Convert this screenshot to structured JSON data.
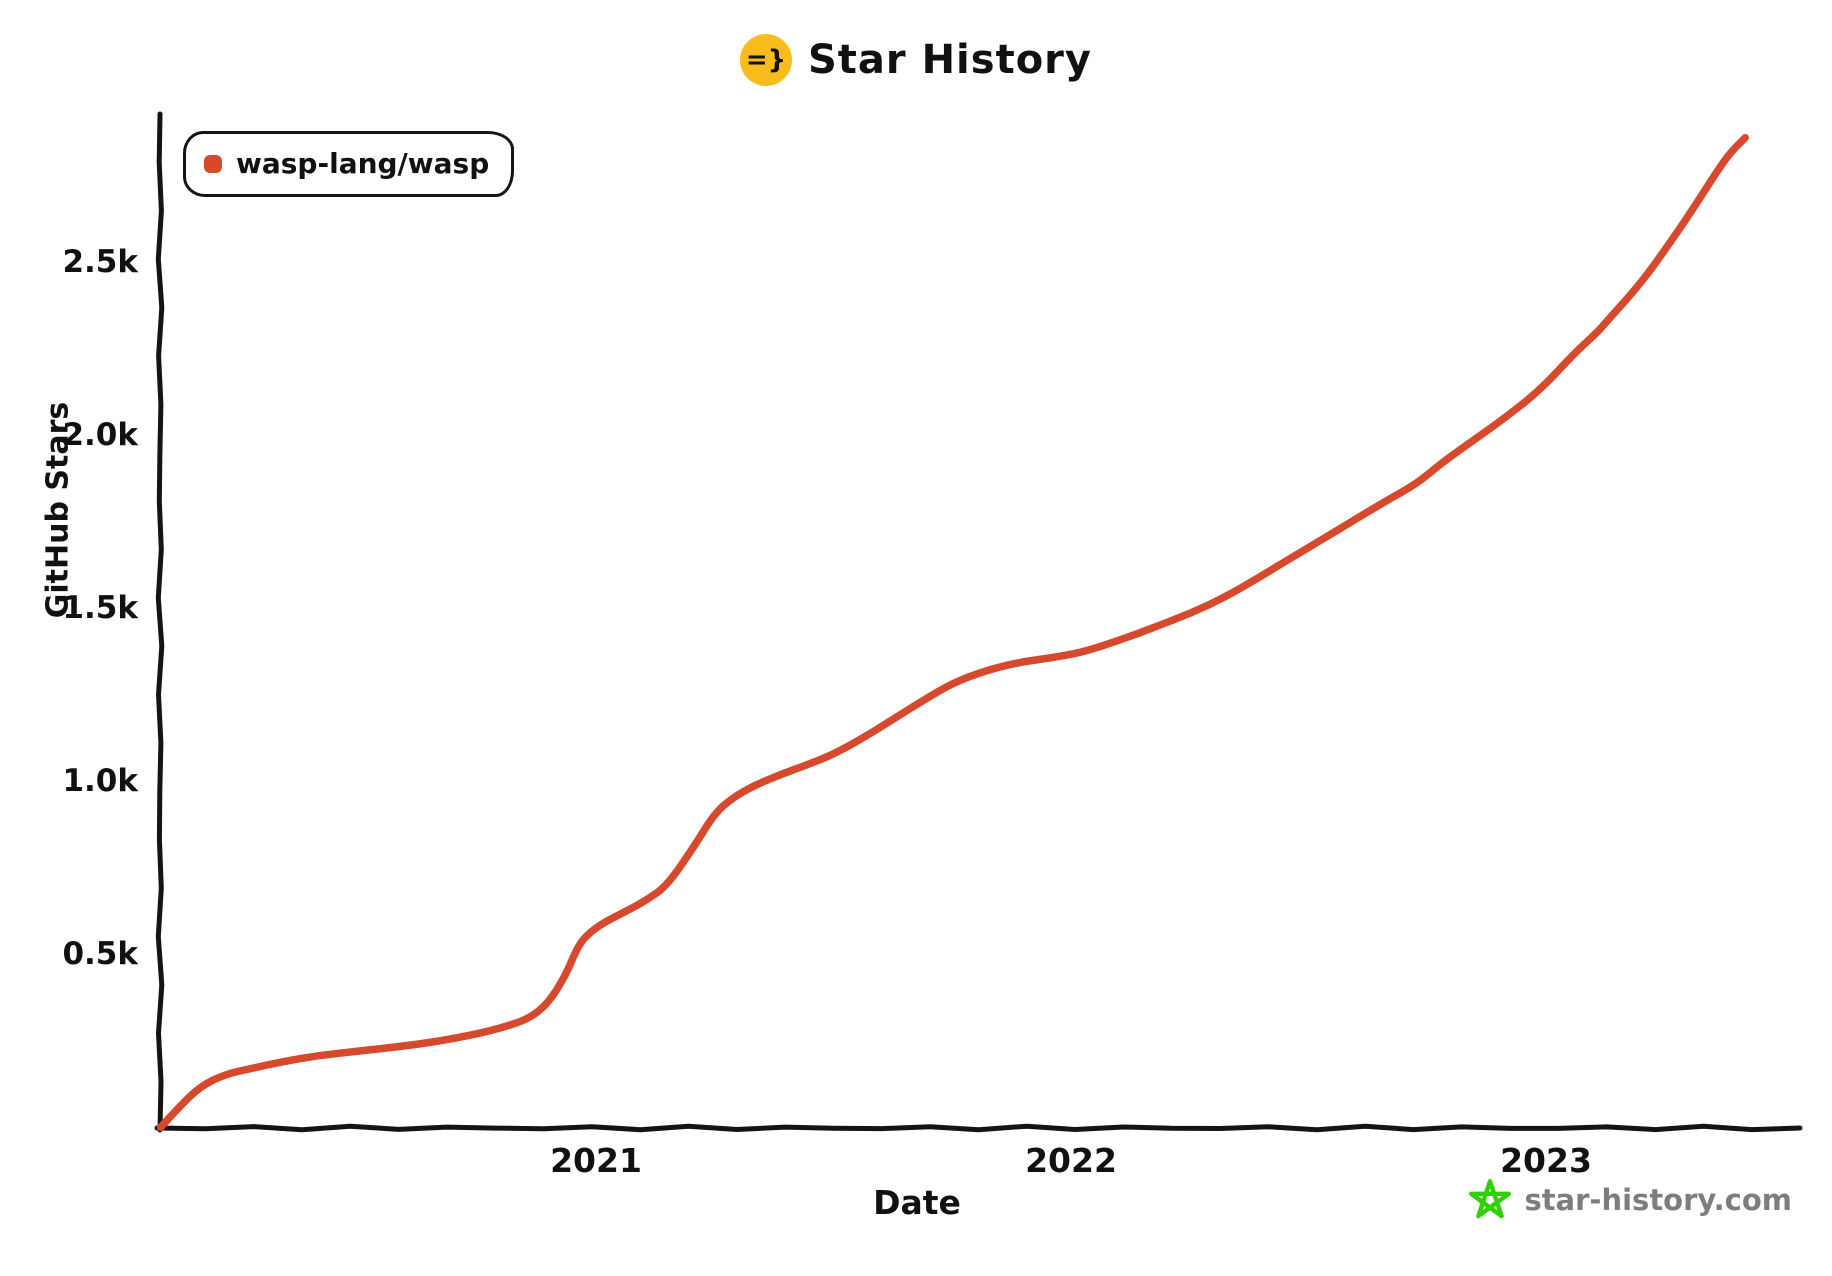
{
  "header": {
    "title": "Star History",
    "logo_glyph": "=}",
    "logo_bg": "#f8bd1c"
  },
  "legend": {
    "items": [
      {
        "label": "wasp-lang/wasp",
        "color": "#d6492c"
      }
    ]
  },
  "watermark": {
    "label": "star-history.com",
    "star_color": "#2fd100",
    "text_color": "#7d7d7d"
  },
  "colors": {
    "axis": "#141414",
    "text": "#111111",
    "series": "#d6492c",
    "background": "#ffffff"
  },
  "chart_data": {
    "type": "line",
    "title": "Star History",
    "xlabel": "Date",
    "ylabel": "GitHub Stars",
    "grid": false,
    "legend_position": "top-left",
    "x_ticks": [
      {
        "label": "2021",
        "year": 2021
      },
      {
        "label": "2022",
        "year": 2022
      },
      {
        "label": "2023",
        "year": 2023
      }
    ],
    "y_ticks": [
      {
        "label": "0.5k",
        "value": 500
      },
      {
        "label": "1.0k",
        "value": 1000
      },
      {
        "label": "1.5k",
        "value": 1500
      },
      {
        "label": "2.0k",
        "value": 2000
      },
      {
        "label": "2.5k",
        "value": 2500
      }
    ],
    "ylim": [
      0,
      2950
    ],
    "xlim_dates": [
      "2020-01-30",
      "2023-07-01"
    ],
    "series": [
      {
        "name": "wasp-lang/wasp",
        "color": "#d6492c",
        "points": [
          [
            "2020-02-01",
            2
          ],
          [
            "2020-02-15",
            60
          ],
          [
            "2020-03-01",
            120
          ],
          [
            "2020-03-20",
            155
          ],
          [
            "2020-04-10",
            172
          ],
          [
            "2020-05-01",
            190
          ],
          [
            "2020-06-01",
            210
          ],
          [
            "2020-07-01",
            222
          ],
          [
            "2020-08-01",
            235
          ],
          [
            "2020-09-01",
            250
          ],
          [
            "2020-10-01",
            272
          ],
          [
            "2020-10-20",
            290
          ],
          [
            "2020-11-10",
            315
          ],
          [
            "2020-11-25",
            360
          ],
          [
            "2020-12-08",
            440
          ],
          [
            "2020-12-18",
            530
          ],
          [
            "2020-12-28",
            570
          ],
          [
            "2021-01-10",
            600
          ],
          [
            "2021-01-25",
            628
          ],
          [
            "2021-02-10",
            660
          ],
          [
            "2021-02-25",
            700
          ],
          [
            "2021-03-15",
            810
          ],
          [
            "2021-04-01",
            910
          ],
          [
            "2021-04-15",
            955
          ],
          [
            "2021-05-01",
            990
          ],
          [
            "2021-05-20",
            1020
          ],
          [
            "2021-06-10",
            1048
          ],
          [
            "2021-07-01",
            1080
          ],
          [
            "2021-07-25",
            1130
          ],
          [
            "2021-08-15",
            1178
          ],
          [
            "2021-09-10",
            1238
          ],
          [
            "2021-10-01",
            1285
          ],
          [
            "2021-10-25",
            1320
          ],
          [
            "2021-11-20",
            1345
          ],
          [
            "2021-12-15",
            1358
          ],
          [
            "2022-01-10",
            1375
          ],
          [
            "2022-02-08",
            1410
          ],
          [
            "2022-03-05",
            1448
          ],
          [
            "2022-04-01",
            1487
          ],
          [
            "2022-04-26",
            1530
          ],
          [
            "2022-05-22",
            1587
          ],
          [
            "2022-06-16",
            1643
          ],
          [
            "2022-07-11",
            1700
          ],
          [
            "2022-08-06",
            1758
          ],
          [
            "2022-08-31",
            1814
          ],
          [
            "2022-09-24",
            1864
          ],
          [
            "2022-10-12",
            1922
          ],
          [
            "2022-11-07",
            1990
          ],
          [
            "2022-12-02",
            2058
          ],
          [
            "2022-12-28",
            2137
          ],
          [
            "2023-01-23",
            2240
          ],
          [
            "2023-02-10",
            2300
          ],
          [
            "2023-02-17",
            2330
          ],
          [
            "2023-03-14",
            2445
          ],
          [
            "2023-04-09",
            2580
          ],
          [
            "2023-04-25",
            2670
          ],
          [
            "2023-05-10",
            2760
          ],
          [
            "2023-05-20",
            2815
          ],
          [
            "2023-06-02",
            2862
          ]
        ]
      }
    ]
  }
}
